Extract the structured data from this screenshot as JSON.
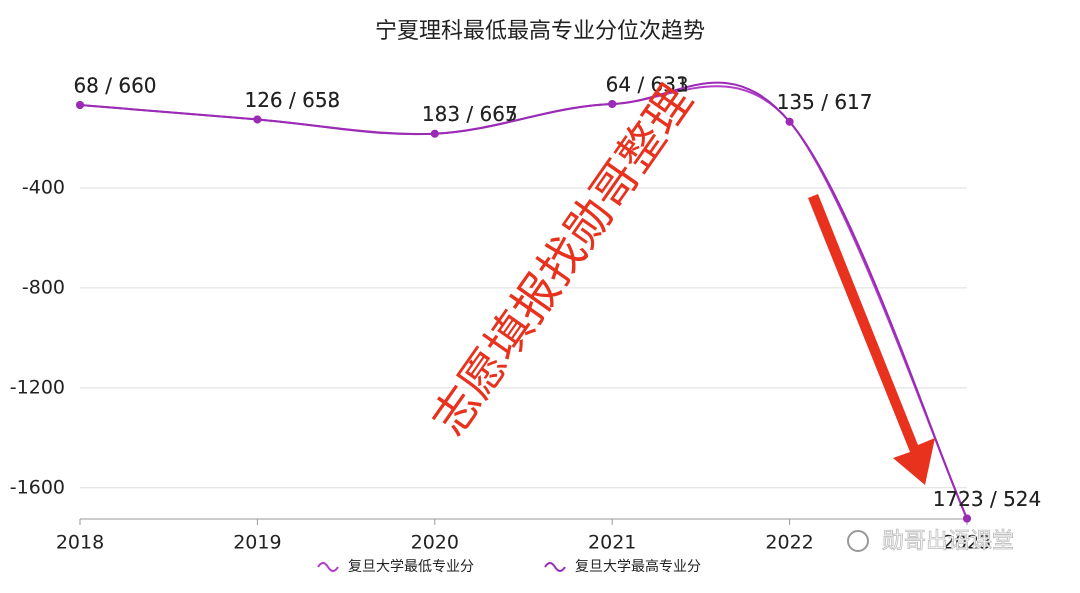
{
  "chart_data": {
    "type": "line",
    "title": "宁夏理科最低最高专业分位次趋势",
    "categories": [
      "2018",
      "2019",
      "2020",
      "2021",
      "2022",
      "2023"
    ],
    "series": [
      {
        "name": "复旦大学最低专业分",
        "color": "#b13cc8",
        "values": [
          -68,
          -126,
          -183,
          -64,
          -135,
          -1723
        ],
        "value_labels": [
          "68 / 660",
          "126 / 653",
          "183 / 665",
          "64 / 631",
          "135 / 617",
          "1723 / 524"
        ]
      },
      {
        "name": "复旦大学最高专业分",
        "color": "#9a2bb5",
        "values": [
          -68,
          -126,
          -183,
          -64,
          -135,
          -1723
        ],
        "value_labels": [
          "68 / 660",
          "126 / 658",
          "183 / 667",
          "64 / 633",
          "135 / 617",
          "1723 / 524"
        ]
      }
    ],
    "ylim": [
      -1725,
      0
    ],
    "yticks": [
      -400,
      -800,
      -1200,
      -1600
    ],
    "grid": true,
    "legend": "bottom",
    "annotations": [
      "志愿填报找勋哥整理",
      "勋哥出语课堂"
    ]
  }
}
